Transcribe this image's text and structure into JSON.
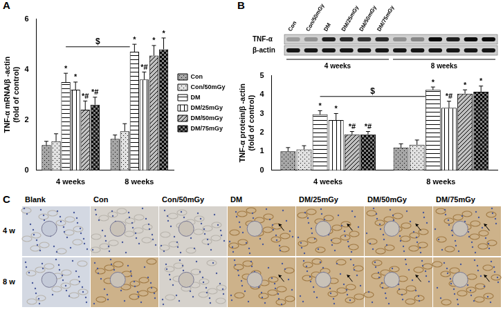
{
  "panel_labels": [
    "A",
    "B",
    "C"
  ],
  "chart_data": [
    {
      "type": "bar",
      "categories": [
        "4 weeks",
        "8 weeks"
      ],
      "y_label": [
        "TNF-α mRNA/β -actin",
        "(fold of control)"
      ],
      "ylim": [
        0,
        6
      ],
      "yticks": [
        0,
        2,
        4,
        6
      ],
      "grid": false,
      "legend": "right",
      "series": [
        {
          "name": "Con",
          "color": "#a6a6a6",
          "values": [
            1.0,
            1.25
          ],
          "errors": [
            0.15,
            0.15
          ],
          "significance": [
            null,
            null
          ]
        },
        {
          "name": "Con/50mGy",
          "color": "#e0e0e0",
          "values": [
            1.15,
            1.55
          ],
          "errors": [
            0.3,
            0.3
          ],
          "significance": [
            null,
            null
          ]
        },
        {
          "name": "DM",
          "color": "#ffffff",
          "values": [
            3.5,
            4.7
          ],
          "errors": [
            0.35,
            0.3
          ],
          "significance": [
            "*",
            "*"
          ]
        },
        {
          "name": "DM/25mGy",
          "color": "#ffffff",
          "values": [
            3.2,
            3.6
          ],
          "errors": [
            0.3,
            0.3
          ],
          "significance": [
            "*",
            "*#"
          ]
        },
        {
          "name": "DM/50mGy",
          "color": "#bfbfbf",
          "values": [
            2.4,
            4.55
          ],
          "errors": [
            0.35,
            0.4
          ],
          "significance": [
            "*#",
            "*"
          ]
        },
        {
          "name": "DM/75mGy",
          "color": "#7f7f7f",
          "values": [
            2.6,
            4.8
          ],
          "errors": [
            0.3,
            0.45
          ],
          "significance": [
            "*#",
            "*"
          ]
        }
      ],
      "bracket": {
        "label": "$",
        "series": "DM",
        "from": "4 weeks",
        "to": "8 weeks",
        "y": 4.9
      }
    },
    {
      "type": "bar",
      "categories": [
        "4 weeks",
        "8 weeks"
      ],
      "y_label": [
        "TNF-α protein/β -actin",
        "(fold of control)"
      ],
      "ylim": [
        0,
        5
      ],
      "yticks": [
        0,
        1,
        2,
        3,
        4,
        5
      ],
      "grid": false,
      "series": [
        {
          "name": "Con",
          "color": "#a6a6a6",
          "values": [
            1.0,
            1.2
          ],
          "errors": [
            0.2,
            0.2
          ],
          "significance": [
            null,
            null
          ]
        },
        {
          "name": "Con/50mGy",
          "color": "#e0e0e0",
          "values": [
            1.1,
            1.35
          ],
          "errors": [
            0.2,
            0.25
          ],
          "significance": [
            null,
            null
          ]
        },
        {
          "name": "DM",
          "color": "#ffffff",
          "values": [
            2.95,
            4.25
          ],
          "errors": [
            0.2,
            0.15
          ],
          "significance": [
            "*",
            "*"
          ]
        },
        {
          "name": "DM/25mGy",
          "color": "#ffffff",
          "values": [
            2.65,
            3.3
          ],
          "errors": [
            0.35,
            0.35
          ],
          "significance": [
            "*",
            "*#"
          ]
        },
        {
          "name": "DM/50mGy",
          "color": "#bfbfbf",
          "values": [
            1.9,
            4.05
          ],
          "errors": [
            0.15,
            0.2
          ],
          "significance": [
            "*#",
            "*"
          ]
        },
        {
          "name": "DM/75mGy",
          "color": "#7f7f7f",
          "values": [
            1.9,
            4.15
          ],
          "errors": [
            0.15,
            0.3
          ],
          "significance": [
            "*#",
            "*"
          ]
        }
      ],
      "bracket": {
        "label": "$",
        "series": "DM",
        "from": "4 weeks",
        "to": "8 weeks",
        "y": 3.9
      }
    }
  ],
  "blot": {
    "row_labels": [
      "TNF-α",
      "β-actin"
    ],
    "lane_labels": [
      "Con",
      "Con/50mGy",
      "DM",
      "DM/25mGy",
      "DM/50mGy",
      "DM/75mGy"
    ],
    "groups": [
      "4 weeks",
      "8 weeks"
    ]
  },
  "histology": {
    "columns": [
      "Blank",
      "Con",
      "Con/50mGy",
      "DM",
      "DM/25mGy",
      "DM/50mGy",
      "DM/75mGy"
    ],
    "rows": [
      "4 w",
      "8 w"
    ]
  }
}
